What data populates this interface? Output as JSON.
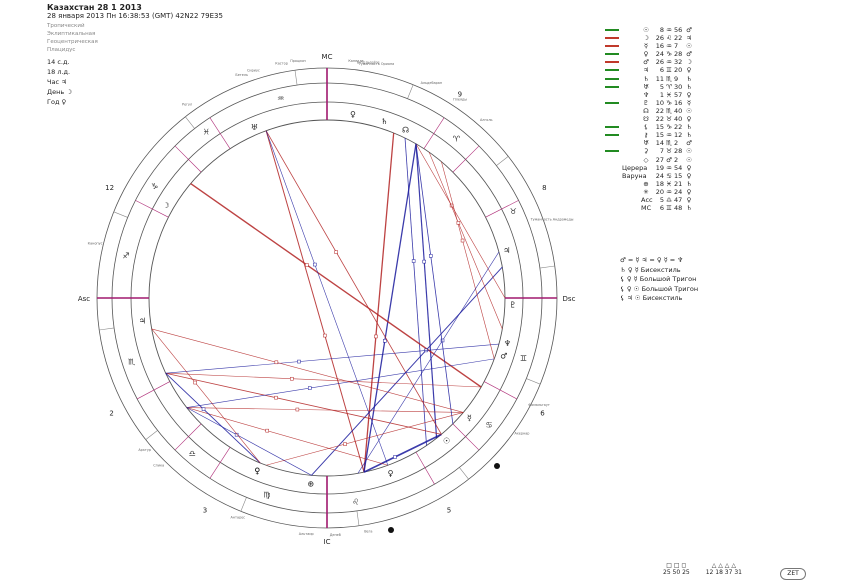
{
  "header": {
    "title": "Казахстан 28 1 2013",
    "subtitle": "28 января 2013  Пн  16:38:53 (GMT) 42N22  79E35"
  },
  "info": [
    "Тропический",
    "Эклиптикальная",
    "Геоцентрическая",
    "Плацидус"
  ],
  "meta": [
    "14 с.д.",
    "18 л.д.",
    "Час ♃",
    "День ☽",
    "Год ♀"
  ],
  "chart": {
    "angles": {
      "mc": "MC",
      "ic": "IC",
      "asc": "Asc",
      "dsc": "Dsc"
    },
    "house_numbers": [
      {
        "n": "9",
        "angle": 57
      },
      {
        "n": "8",
        "angle": 27
      },
      {
        "n": "6",
        "angle": -28
      },
      {
        "n": "5",
        "angle": -60
      },
      {
        "n": "3",
        "angle": -120
      },
      {
        "n": "2",
        "angle": -152
      },
      {
        "n": "12",
        "angle": 153
      }
    ],
    "zodiac_signs": [
      {
        "g": "♓",
        "angle": 126
      },
      {
        "g": "♒",
        "angle": 103
      },
      {
        "g": "♑",
        "angle": 147
      },
      {
        "g": "♐",
        "angle": 168
      },
      {
        "g": "♏",
        "angle": 198
      },
      {
        "g": "♎",
        "angle": 229
      },
      {
        "g": "♍",
        "angle": 253
      },
      {
        "g": "♌",
        "angle": 278
      },
      {
        "g": "♋",
        "angle": 322
      },
      {
        "g": "♊",
        "angle": 343
      },
      {
        "g": "♉",
        "angle": 25
      },
      {
        "g": "♈",
        "angle": 51
      }
    ],
    "planet_marks": [
      {
        "g": "♅",
        "angle": 113
      },
      {
        "g": "♄",
        "angle": 72
      },
      {
        "g": "♀",
        "angle": 82
      },
      {
        "g": "☊",
        "angle": 65
      },
      {
        "g": "♃",
        "angle": 15
      },
      {
        "g": "♀",
        "angle": 248
      },
      {
        "g": "♃",
        "angle": 187
      },
      {
        "g": "♂",
        "angle": -18
      },
      {
        "g": "♆",
        "angle": -14
      },
      {
        "g": "☉",
        "angle": -50
      },
      {
        "g": "♀",
        "angle": -70
      },
      {
        "g": "⊕",
        "angle": -95
      },
      {
        "g": "♀",
        "angle": -112
      },
      {
        "g": "☽",
        "angle": 150
      },
      {
        "g": "☿",
        "angle": -40
      },
      {
        "g": "♇",
        "angle": -2
      }
    ],
    "outer_labels": [
      {
        "t": "Туманность Ориона",
        "angle": 78
      },
      {
        "t": "Бетельгейзе",
        "angle": 80
      },
      {
        "t": "Капелла",
        "angle": 83
      },
      {
        "t": "Альдебаран",
        "angle": 64
      },
      {
        "t": "Плеяды",
        "angle": 56
      },
      {
        "t": "Алголь",
        "angle": 48
      },
      {
        "t": "Туманность Андромеды",
        "angle": 19
      },
      {
        "t": "Бетель",
        "angle": 111
      },
      {
        "t": "Сириус",
        "angle": 108
      },
      {
        "t": "Процион",
        "angle": 97
      },
      {
        "t": "Регул",
        "angle": 126
      },
      {
        "t": "Кастор",
        "angle": 101
      },
      {
        "t": "Ахернар",
        "angle": -35
      },
      {
        "t": "Вега",
        "angle": -80
      },
      {
        "t": "Альтаир",
        "angle": -95
      },
      {
        "t": "Антарес",
        "angle": -112
      },
      {
        "t": "Спика",
        "angle": -135
      },
      {
        "t": "Арктур",
        "angle": -140
      },
      {
        "t": "Канопус",
        "angle": 167
      },
      {
        "t": "Фомальгаут",
        "angle": -27
      },
      {
        "t": "Денеб",
        "angle": -88
      }
    ]
  },
  "planets": [
    {
      "bar": "#228b22",
      "name": "",
      "g": "☉",
      "deg": "8",
      "sign": "♒",
      "min": "56",
      "rul": "♂"
    },
    {
      "bar": "#c0392b",
      "name": "",
      "g": "☽",
      "deg": "26",
      "sign": "♌",
      "min": "22",
      "rul": "♃"
    },
    {
      "bar": "#c0392b",
      "name": "",
      "g": "☿",
      "deg": "16",
      "sign": "♒",
      "min": "7",
      "rul": "☉"
    },
    {
      "bar": "#228b22",
      "name": "",
      "g": "♀",
      "deg": "24",
      "sign": "♑",
      "min": "28",
      "rul": "♂"
    },
    {
      "bar": "#c0392b",
      "name": "",
      "g": "♂",
      "deg": "26",
      "sign": "♒",
      "min": "32",
      "rul": "☽"
    },
    {
      "bar": "#228b22",
      "name": "",
      "g": "♃",
      "deg": "6",
      "sign": "♊",
      "min": "20",
      "rul": "♀"
    },
    {
      "bar": "#228b22",
      "name": "",
      "g": "♄",
      "deg": "11",
      "sign": "♏",
      "min": "9",
      "rul": "♄"
    },
    {
      "bar": "#228b22",
      "name": "",
      "g": "♅",
      "deg": "5",
      "sign": "♈",
      "min": "30",
      "rul": "♄"
    },
    {
      "bar": "",
      "name": "",
      "g": "♆",
      "deg": "1",
      "sign": "♓",
      "min": "57",
      "rul": "♀"
    },
    {
      "bar": "#228b22",
      "name": "",
      "g": "♇",
      "deg": "10",
      "sign": "♑",
      "min": "16",
      "rul": "☿"
    },
    {
      "bar": "",
      "name": "",
      "g": "☊",
      "deg": "22",
      "sign": "♏",
      "min": "40",
      "rul": "☉"
    },
    {
      "bar": "",
      "name": "",
      "g": "☋",
      "deg": "22",
      "sign": "♉",
      "min": "40",
      "rul": "♀"
    },
    {
      "bar": "#228b22",
      "name": "",
      "g": "⚸",
      "deg": "15",
      "sign": "♑",
      "min": "22",
      "rul": "♄"
    },
    {
      "bar": "#228b22",
      "name": "",
      "g": "⚷",
      "deg": "15",
      "sign": "♒",
      "min": "12",
      "rul": "♄"
    },
    {
      "bar": "",
      "name": "",
      "g": "♅",
      "deg": "14",
      "sign": "♏",
      "min": "2",
      "rul": "♂"
    },
    {
      "bar": "#228b22",
      "name": "",
      "g": "⚳",
      "deg": "7",
      "sign": "♉",
      "min": "28",
      "rul": "☉"
    },
    {
      "bar": "",
      "name": "",
      "g": "◇",
      "deg": "27",
      "sign": "♂",
      "min": "2",
      "rul": "☉"
    },
    {
      "bar": "",
      "name": "Церера",
      "g": "",
      "deg": "19",
      "sign": "♒",
      "min": "54",
      "rul": "♀"
    },
    {
      "bar": "",
      "name": "Варуна",
      "g": "",
      "deg": "24",
      "sign": "♋",
      "min": "15",
      "rul": "♀"
    },
    {
      "bar": "",
      "name": "",
      "g": "⊕",
      "deg": "18",
      "sign": "♓",
      "min": "21",
      "rul": "♄"
    },
    {
      "bar": "",
      "name": "",
      "g": "✳",
      "deg": "20",
      "sign": "♒",
      "min": "24",
      "rul": "♀"
    },
    {
      "bar": "",
      "name": "",
      "g": "Асс",
      "deg": "5",
      "sign": "♎",
      "min": "47",
      "rul": "♀"
    },
    {
      "bar": "",
      "name": "",
      "g": "МС",
      "deg": "6",
      "sign": "♊",
      "min": "48",
      "rul": "♄"
    }
  ],
  "configs": [
    {
      "glyphs": "♂ = ☿ ♃ = ♀ ☿ = ♆",
      "label": ""
    },
    {
      "glyphs": "♄ ♀ ☿",
      "label": "Бисекстиль"
    },
    {
      "glyphs": "⚸ ♀ ☿",
      "label": "Большой Тригон"
    },
    {
      "glyphs": "⚸ ♀ ☉",
      "label": "Большой Тригон"
    },
    {
      "glyphs": "⚸ ♃ ☉",
      "label": "Бисекстиль"
    }
  ],
  "footer": {
    "groups": [
      {
        "icons": "□ □ ◻",
        "vals": "25 50 25"
      },
      {
        "icons": "△ △ △ △",
        "vals": "12 18 37 31"
      }
    ],
    "zet": "ZET"
  }
}
